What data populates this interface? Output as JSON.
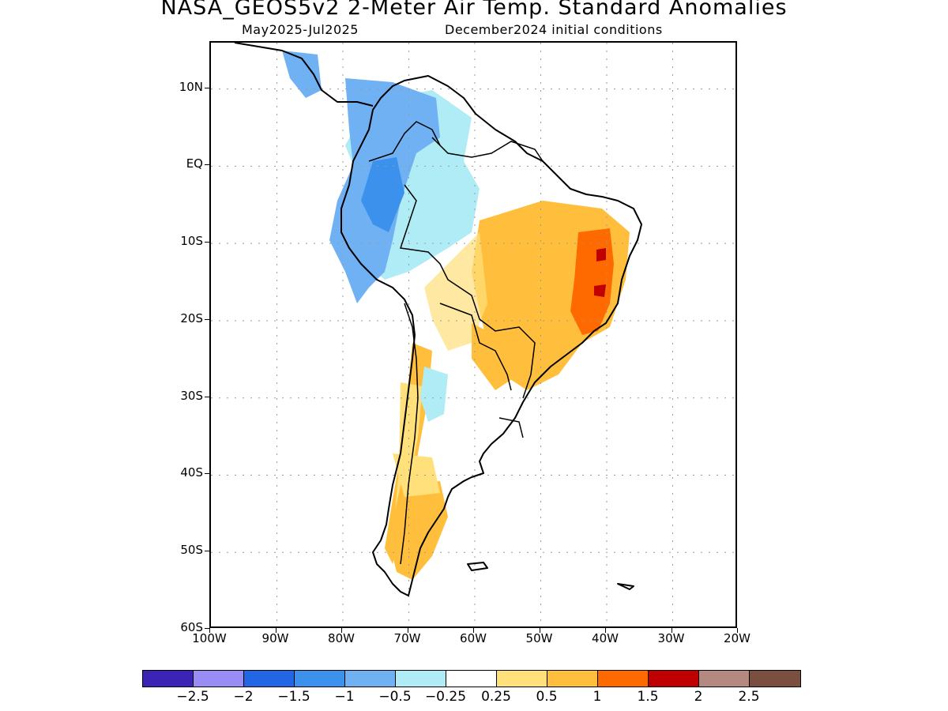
{
  "title": "NASA_GEOS5v2 2-Meter Air Temp. Standard Anomalies",
  "subtitle_left": "May2025-Jul2025",
  "subtitle_right": "December2024 initial conditions",
  "lat_labels": [
    "10N",
    "EQ",
    "10S",
    "20S",
    "30S",
    "40S",
    "50S",
    "60S"
  ],
  "lon_labels": [
    "100W",
    "90W",
    "80W",
    "70W",
    "60W",
    "50W",
    "40W",
    "30W",
    "20W"
  ],
  "map": {
    "lon_range": [
      -100,
      -20
    ],
    "lat_range": [
      -60,
      16
    ],
    "gridlines": "dotted",
    "region": "South America"
  },
  "colorbar": {
    "colors": [
      "#3b24b5",
      "#9a8cf5",
      "#2166e4",
      "#3c91ed",
      "#70b1f4",
      "#b0ecf5",
      "#ffffff",
      "#ffe07a",
      "#ffbf3d",
      "#ff6a00",
      "#c00000",
      "#b48a80",
      "#7a4f40"
    ],
    "labels": [
      "-2.5",
      "-2",
      "-1.5",
      "-1",
      "-0.5",
      "-0.25",
      "0.25",
      "0.5",
      "1",
      "1.5",
      "2",
      "2.5"
    ]
  }
}
